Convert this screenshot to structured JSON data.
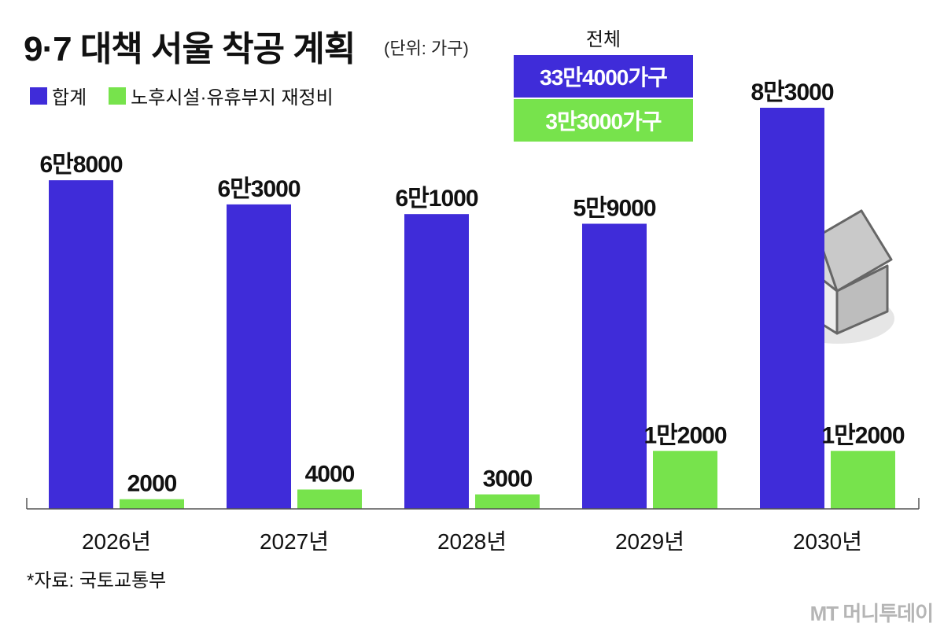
{
  "title": "9·7 대책 서울 착공 계획",
  "unit": "(단위: 가구)",
  "legend": {
    "total": "합계",
    "green": "노후시설·유휴부지 재정비"
  },
  "totals": {
    "header": "전체",
    "total": "33만4000가구",
    "green": "3만3000가구"
  },
  "source": "*자료: 국토교통부",
  "brand": "MT 머니투데이",
  "colors": {
    "total": "#3f2cd9",
    "green": "#77e34c"
  },
  "chart_data": {
    "type": "bar",
    "title": "9·7 대책 서울 착공 계획",
    "categories": [
      "2026년",
      "2027년",
      "2028년",
      "2029년",
      "2030년"
    ],
    "series": [
      {
        "name": "합계",
        "values": [
          68000,
          63000,
          61000,
          59000,
          83000
        ],
        "labels": [
          "6만8000",
          "6만3000",
          "6만1000",
          "5만9000",
          "8만3000"
        ]
      },
      {
        "name": "노후시설·유휴부지 재정비",
        "values": [
          2000,
          4000,
          3000,
          12000,
          12000
        ],
        "labels": [
          "2000",
          "4000",
          "3000",
          "1만2000",
          "1만2000"
        ]
      }
    ],
    "ylim": [
      0,
      83000
    ]
  }
}
